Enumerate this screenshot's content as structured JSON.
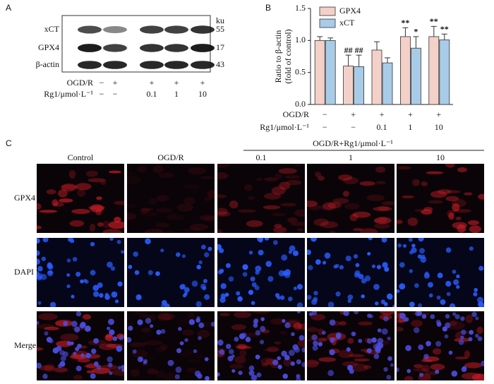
{
  "panel_a": {
    "label": "A",
    "unit": "ku",
    "rows": [
      {
        "name": "xCT",
        "size": "55"
      },
      {
        "name": "GPX4",
        "size": "17"
      },
      {
        "name": "β-actin",
        "size": "43"
      }
    ],
    "conditions": [
      {
        "name": "OGD/R",
        "values": [
          "−",
          "+",
          "+",
          "+",
          "+"
        ]
      },
      {
        "name": "Rg1/μmol·L⁻¹",
        "values": [
          "−",
          "−",
          "0.1",
          "1",
          "10"
        ]
      }
    ]
  },
  "chart_data": {
    "type": "bar",
    "panel_label": "B",
    "y_label": [
      "Ratio to β-actin",
      "(fold of control)"
    ],
    "conditions": [
      {
        "name": "OGD/R",
        "values": [
          "−",
          "+",
          "+",
          "+",
          "+"
        ]
      },
      {
        "name": "Rg1/μmol·L⁻¹",
        "values": [
          "−",
          "−",
          "0.1",
          "1",
          "10"
        ]
      }
    ],
    "series": [
      {
        "name": "GPX4",
        "color": "#f3d0c8",
        "values": [
          1.0,
          0.6,
          0.85,
          1.06,
          1.06
        ],
        "errors": [
          0.06,
          0.17,
          0.13,
          0.14,
          0.16
        ],
        "annotations": [
          null,
          "##",
          null,
          "**",
          "**"
        ]
      },
      {
        "name": "xCT",
        "color": "#a8cbe8",
        "values": [
          1.0,
          0.59,
          0.65,
          0.88,
          1.01
        ],
        "errors": [
          0.04,
          0.18,
          0.08,
          0.18,
          0.09
        ],
        "annotations": [
          null,
          "##",
          null,
          "*",
          "**"
        ]
      }
    ],
    "ylim": [
      0,
      1.5
    ],
    "yticks": [
      {
        "value": 0,
        "label": "0.0"
      },
      {
        "value": 0.5,
        "label": "0.5"
      },
      {
        "value": 1,
        "label": "1.0"
      },
      {
        "value": 1.5,
        "label": "1.5"
      }
    ],
    "legend": "upper-left"
  },
  "panel_c": {
    "label": "C",
    "group_label": "OGD/R+Rg1/μmol·L⁻¹",
    "columns": [
      "Control",
      "OGD/R",
      "0.1",
      "1",
      "10"
    ],
    "rows": [
      "GPX4",
      "DAPI",
      "Merge"
    ]
  }
}
